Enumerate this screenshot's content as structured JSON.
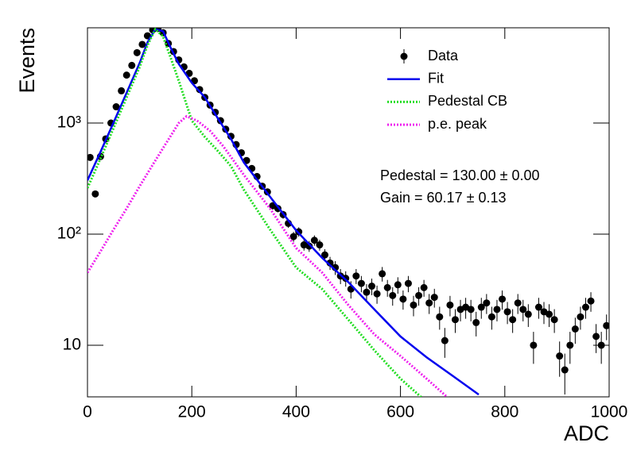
{
  "chart_data": {
    "type": "scatter",
    "xlabel": "ADC",
    "ylabel": "Events",
    "log_y": true,
    "xlim": [
      0,
      1000
    ],
    "ylim": [
      3.43,
      7200
    ],
    "xticks": [
      0,
      200,
      400,
      600,
      800,
      1000
    ],
    "yticks": [
      10,
      {
        "value": 100,
        "label": "10²"
      },
      {
        "value": 1000,
        "label": "10³"
      }
    ],
    "annotations": [
      "Pedestal = 130.00 ± 0.00",
      "Gain = 60.17 ± 0.13"
    ],
    "series": [
      {
        "name": "Data",
        "color": "#000000",
        "style": "points",
        "x": [
          5,
          15,
          25,
          35,
          45,
          55,
          65,
          75,
          85,
          95,
          105,
          115,
          125,
          135,
          145,
          155,
          165,
          175,
          185,
          195,
          205,
          215,
          225,
          235,
          245,
          255,
          265,
          275,
          285,
          295,
          305,
          315,
          325,
          335,
          345,
          355,
          365,
          375,
          385,
          395,
          405,
          415,
          425,
          435,
          445,
          455,
          465,
          475,
          485,
          495,
          505,
          515,
          525,
          535,
          545,
          555,
          565,
          575,
          585,
          595,
          605,
          615,
          625,
          635,
          645,
          655,
          665,
          675,
          685,
          695,
          705,
          715,
          725,
          735,
          745,
          755,
          765,
          775,
          785,
          795,
          805,
          815,
          825,
          835,
          845,
          855,
          865,
          875,
          885,
          895,
          905,
          915,
          925,
          935,
          945,
          955,
          965,
          975,
          985,
          995
        ],
        "values": [
          490,
          230,
          500,
          720,
          1000,
          1400,
          1950,
          2700,
          3300,
          4300,
          5100,
          6100,
          6900,
          7100,
          6500,
          5200,
          4400,
          3700,
          3200,
          2800,
          2400,
          2000,
          1700,
          1450,
          1250,
          1050,
          880,
          760,
          640,
          540,
          460,
          390,
          330,
          270,
          240,
          180,
          170,
          150,
          125,
          95,
          105,
          80,
          78,
          88,
          80,
          65,
          55,
          50,
          42,
          40,
          32,
          42,
          36,
          30,
          34,
          29,
          44,
          33,
          28,
          35,
          26,
          36,
          23,
          28,
          33,
          24,
          27,
          18,
          11,
          23,
          17,
          21,
          22,
          21,
          16,
          22,
          24,
          18,
          21,
          26,
          20,
          17,
          24,
          21,
          19,
          10,
          22,
          20,
          19,
          17,
          8,
          6,
          10,
          14,
          18,
          22,
          25,
          12,
          10,
          15
        ],
        "errors": [
          22.1,
          15.2,
          22.4,
          26.8,
          31.6,
          37.4,
          44.2,
          52,
          57.4,
          65.6,
          71.4,
          78.1,
          83.1,
          84.3,
          80.6,
          72.1,
          66.3,
          60.8,
          56.6,
          52.9,
          49,
          44.7,
          41.2,
          38.1,
          35.4,
          32.4,
          29.7,
          27.6,
          25.3,
          23.2,
          21.4,
          19.7,
          18.2,
          16.4,
          15.5,
          13.4,
          13,
          12.2,
          11.2,
          9.7,
          10.2,
          8.9,
          8.8,
          9.4,
          8.9,
          8.1,
          7.4,
          7.1,
          6.5,
          6.3,
          5.7,
          6.5,
          6,
          5.5,
          5.8,
          5.4,
          6.6,
          5.7,
          5.3,
          5.9,
          5.1,
          6,
          4.8,
          5.3,
          5.7,
          4.9,
          5.2,
          4.2,
          3.3,
          4.8,
          4.1,
          4.6,
          4.7,
          4.6,
          4,
          4.7,
          4.9,
          4.2,
          4.6,
          5.1,
          4.5,
          4.1,
          4.9,
          4.6,
          4.4,
          3.2,
          4.7,
          4.5,
          4.4,
          4.1,
          2.8,
          2.4,
          3.2,
          3.7,
          4.2,
          4.7,
          5,
          3.5,
          3.2,
          3.9
        ]
      },
      {
        "name": "Fit",
        "color": "#0000ee",
        "style": "solid",
        "x": [
          0,
          25,
          50,
          75,
          100,
          115,
          130,
          145,
          160,
          175,
          200,
          225,
          250,
          275,
          300,
          350,
          400,
          450,
          500,
          550,
          600,
          650,
          700,
          750
        ],
        "values": [
          305,
          550,
          1010,
          1870,
          3470,
          5300,
          7000,
          6700,
          4700,
          3400,
          2300,
          1700,
          1100,
          720,
          440,
          217,
          108,
          61,
          37,
          21,
          12,
          7.8,
          5.3,
          3.6
        ]
      },
      {
        "name": "Pedestal CB",
        "color": "#22dd22",
        "style": "dotted",
        "x": [
          0,
          25,
          50,
          75,
          100,
          115,
          130,
          145,
          160,
          175,
          200,
          225,
          250,
          275,
          300,
          350,
          400,
          450,
          500,
          550,
          600,
          640
        ],
        "values": [
          260,
          480,
          900,
          1700,
          3200,
          5000,
          7000,
          6000,
          3800,
          2400,
          1050,
          750,
          560,
          410,
          250,
          110,
          50,
          32,
          17,
          9,
          5,
          3.4
        ]
      },
      {
        "name": "p.e. peak",
        "color": "#ee22ee",
        "style": "dotted",
        "x": [
          0,
          25,
          50,
          75,
          100,
          125,
          150,
          175,
          190,
          210,
          235,
          260,
          300,
          350,
          400,
          450,
          500,
          550,
          600,
          650,
          690
        ],
        "values": [
          45,
          70,
          110,
          170,
          270,
          420,
          650,
          1000,
          1150,
          1050,
          850,
          620,
          340,
          170,
          75,
          45,
          23,
          12.5,
          8,
          5,
          3.4
        ]
      }
    ]
  }
}
